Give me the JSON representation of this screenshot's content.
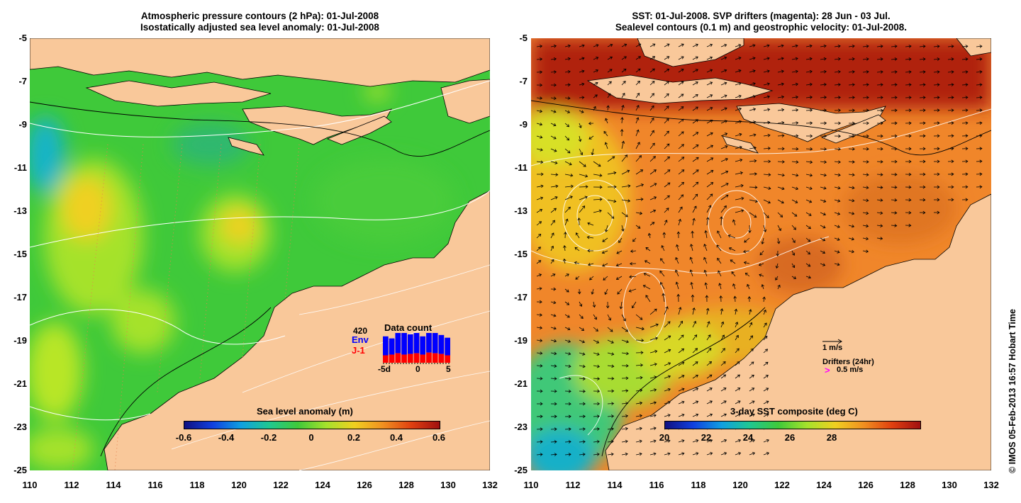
{
  "left_panel": {
    "title_line1": "Atmospheric pressure contours (2 hPa): 01-Jul-2008",
    "title_line2": "Isostatically adjusted sea level anomaly: 01-Jul-2008",
    "colorbar": {
      "title": "Sea level anomaly (m)",
      "ticks": [
        "-0.6",
        "-0.4",
        "-0.2",
        "0",
        "0.2",
        "0.4",
        "0.6"
      ]
    },
    "data_count": {
      "title": "Data count",
      "total": "420",
      "series": [
        {
          "name": "Env",
          "color": "#0000ff",
          "values": [
            140,
            120,
            150,
            160,
            145,
            150,
            135,
            160,
            150,
            140,
            130
          ]
        },
        {
          "name": "J-1",
          "color": "#ff0000",
          "values": [
            55,
            60,
            70,
            60,
            65,
            70,
            60,
            75,
            70,
            65,
            55
          ]
        }
      ],
      "xticks": [
        "-5d",
        "0",
        "5"
      ]
    }
  },
  "right_panel": {
    "title_line1": "SST: 01-Jul-2008. SVP drifters (magenta): 28 Jun - 03 Jul.",
    "title_line2": "Sealevel contours (0.1 m) and geostrophic velocity: 01-Jul-2008.",
    "colorbar": {
      "title": "3-day SST composite (deg C)",
      "ticks": [
        "20",
        "22",
        "24",
        "26",
        "28"
      ]
    },
    "velocity_key": "1 m/s",
    "drifters_label": "Drifters (24hr)",
    "drifters_key_symbol": ">",
    "drifters_key": "0.5 m/s"
  },
  "axes": {
    "y_ticks": [
      "-5",
      "-7",
      "-9",
      "-11",
      "-13",
      "-15",
      "-17",
      "-19",
      "-21",
      "-23",
      "-25"
    ],
    "x_ticks": [
      "110",
      "112",
      "114",
      "116",
      "118",
      "120",
      "122",
      "124",
      "126",
      "128",
      "130",
      "132"
    ]
  },
  "credit": "© IMOS 05-Feb-2013 16:57 Hobart Time",
  "colors": {
    "land": "#f9c89a",
    "slaGreen": "#3fc93a",
    "sstOrange": "#f0862a",
    "sstDark": "#b02010"
  }
}
